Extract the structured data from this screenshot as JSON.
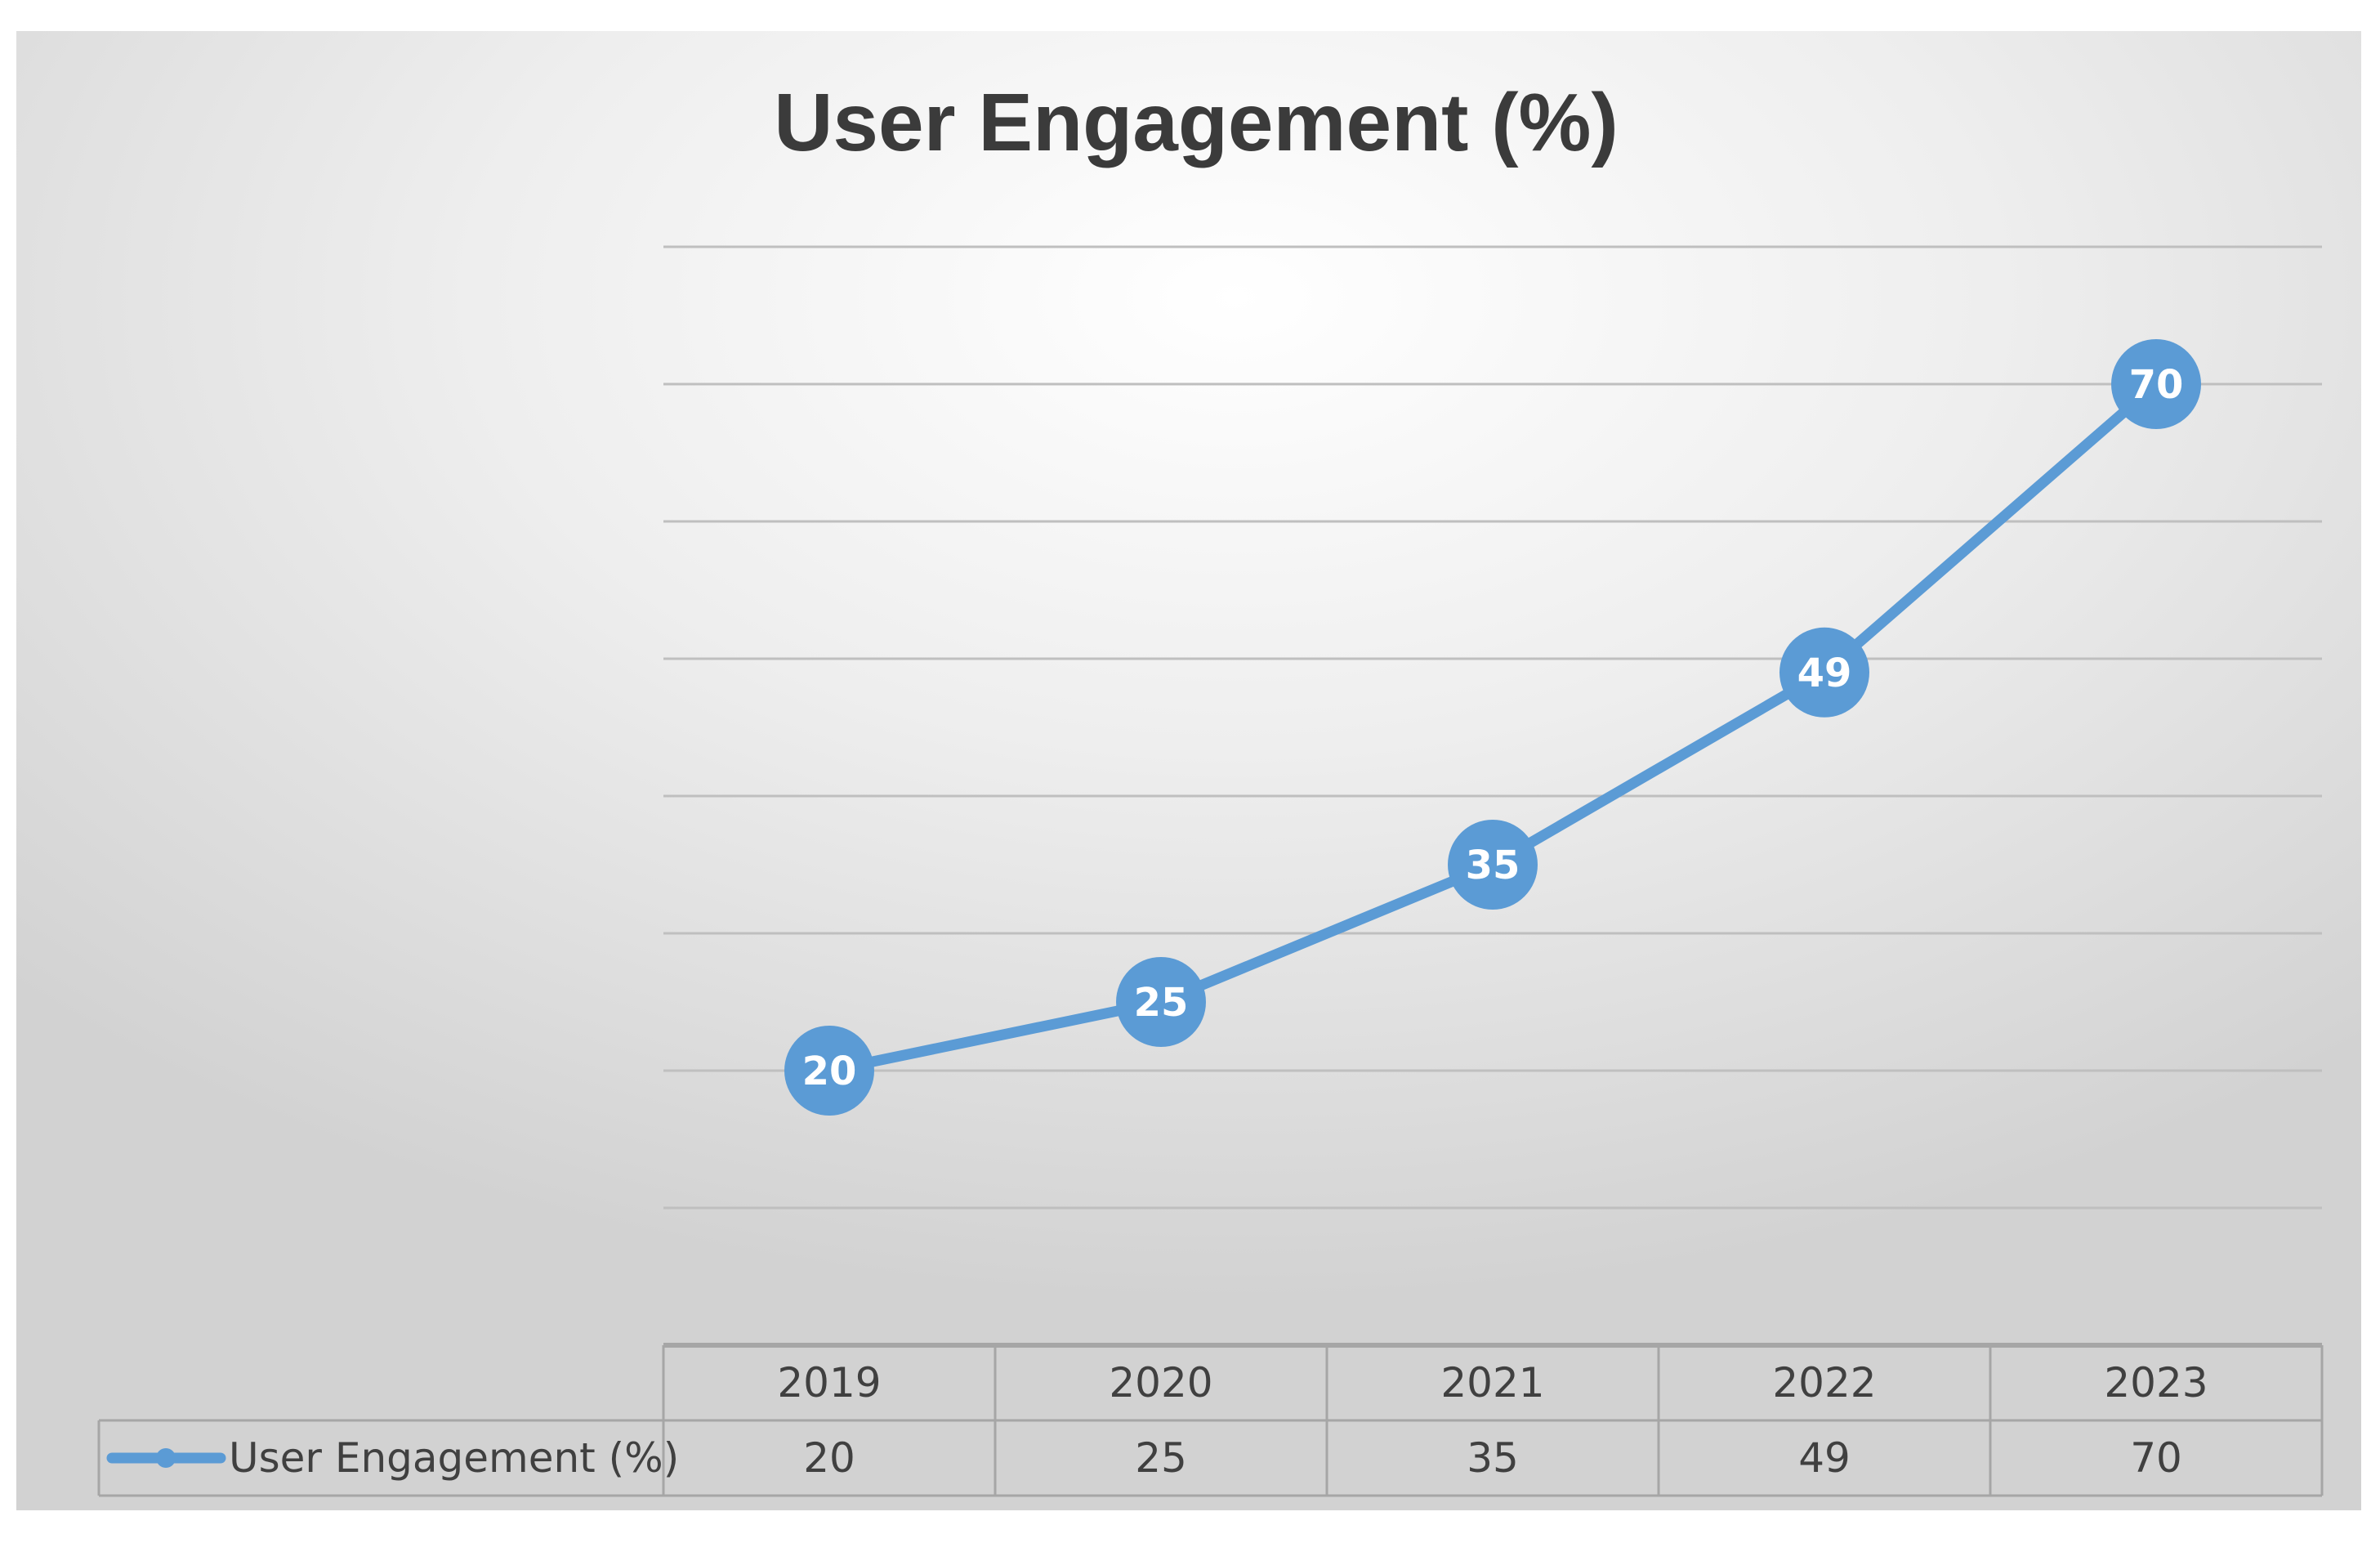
{
  "chart_data": {
    "type": "line",
    "title": "User Engagement (%)",
    "categories": [
      "2019",
      "2020",
      "2021",
      "2022",
      "2023"
    ],
    "series": [
      {
        "name": "User Engagement (%)",
        "values": [
          20,
          25,
          35,
          49,
          70
        ],
        "color": "#5b9bd5"
      }
    ],
    "ylim": [
      0,
      80
    ],
    "y_major_unit": 10,
    "grid": true,
    "legend": "data-table",
    "data_labels": true,
    "gridline_color": "#bfbfbf",
    "table_border_color": "#a6a6a6"
  }
}
